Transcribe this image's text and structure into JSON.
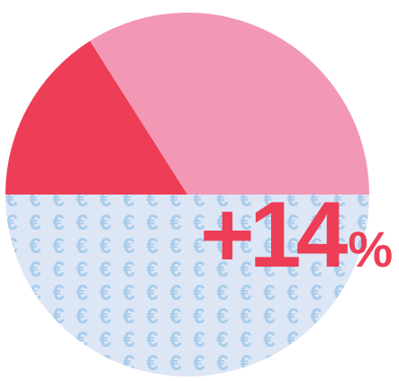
{
  "chart_data": {
    "type": "pie",
    "slices": [
      {
        "value": 50,
        "color": "#DCE6F5",
        "pattern": "euro-symbols"
      },
      {
        "value": 34,
        "color": "#F298B4"
      },
      {
        "value": 16,
        "color": "#EE3D56"
      }
    ],
    "start_angle_deg": 180,
    "direction": "counterclockwise",
    "pattern_color": "#A9CCEB",
    "pattern_symbol": "€",
    "annotation": {
      "value": "+14",
      "unit": "%",
      "color": "#EE3D56"
    }
  }
}
